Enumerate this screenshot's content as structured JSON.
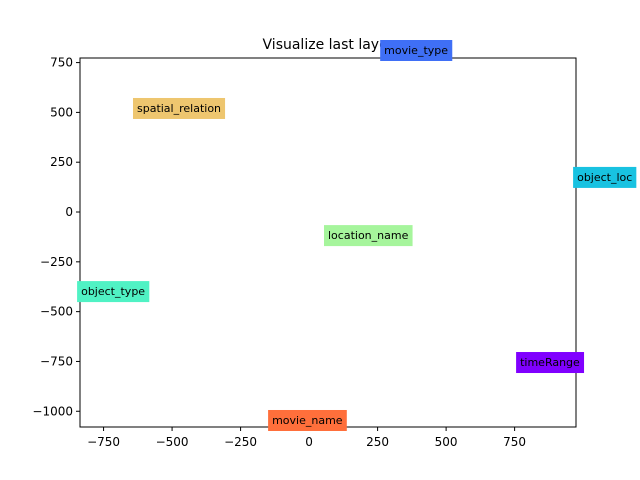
{
  "chart_data": {
    "type": "scatter",
    "title": "Visualize last layer",
    "labels": [
      "movie_type",
      "spatial_relation",
      "object_loc",
      "location_name",
      "object_type",
      "timeRange",
      "movie_name"
    ],
    "x": [
      274,
      -628,
      978,
      69,
      -832,
      770,
      -135
    ],
    "y": [
      773,
      482,
      136,
      -156,
      -437,
      -793,
      -1084
    ],
    "colors": [
      "#3f6ff6",
      "#eec66f",
      "#18c2e1",
      "#a6f59c",
      "#50f2c4",
      "#8000ff",
      "#ff6f3b"
    ],
    "xlim": [
      -836,
      974
    ],
    "ylim": [
      -1079,
      773
    ],
    "xticks": [
      {
        "value": -750,
        "label": "−750"
      },
      {
        "value": -500,
        "label": "−500"
      },
      {
        "value": -250,
        "label": "−250"
      },
      0,
      250,
      500,
      750
    ],
    "yticks": [
      {
        "value": -1000,
        "label": "−1000"
      },
      {
        "value": -750,
        "label": "−750"
      },
      {
        "value": -500,
        "label": "−500"
      },
      {
        "value": -250,
        "label": "−250"
      },
      0,
      250,
      500,
      750
    ]
  }
}
